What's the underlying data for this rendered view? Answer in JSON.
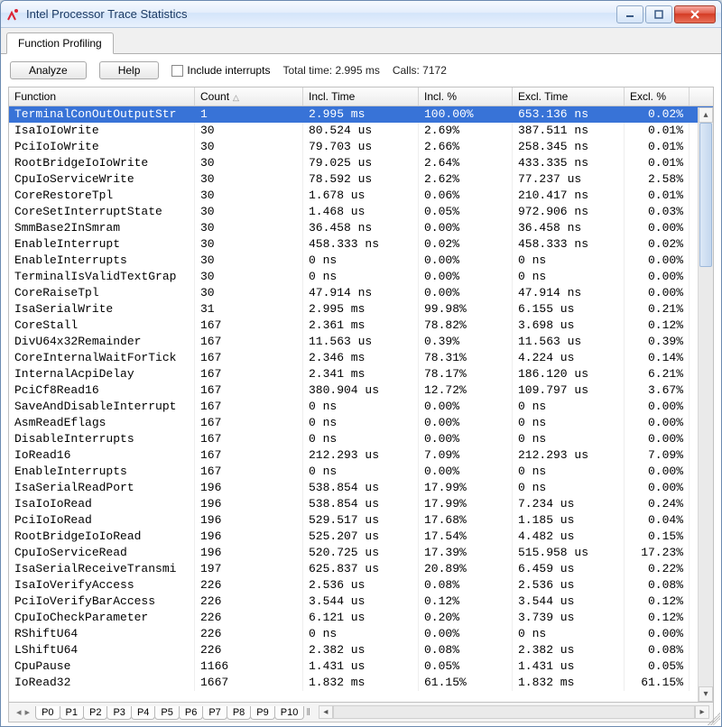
{
  "window": {
    "title": "Intel Processor Trace Statistics"
  },
  "tabs": {
    "main": "Function Profiling"
  },
  "toolbar": {
    "analyze": "Analyze",
    "help": "Help",
    "interrupts_label": "Include interrupts",
    "total_time_label": "Total time: 2.995 ms",
    "calls_label": "Calls: 7172"
  },
  "columns": [
    "Function",
    "Count",
    "Incl. Time",
    "Incl. %",
    "Excl. Time",
    "Excl. %"
  ],
  "rows": [
    {
      "fn": "TerminalConOutOutputStr",
      "count": "1",
      "it": "2.995 ms",
      "ip": "100.00%",
      "et": "653.136 ns",
      "ep": "0.02%",
      "sel": true
    },
    {
      "fn": "IsaIoIoWrite",
      "count": "30",
      "it": "80.524 us",
      "ip": "2.69%",
      "et": "387.511 ns",
      "ep": "0.01%"
    },
    {
      "fn": "PciIoIoWrite",
      "count": "30",
      "it": "79.703 us",
      "ip": "2.66%",
      "et": "258.345 ns",
      "ep": "0.01%"
    },
    {
      "fn": "RootBridgeIoIoWrite",
      "count": "30",
      "it": "79.025 us",
      "ip": "2.64%",
      "et": "433.335 ns",
      "ep": "0.01%"
    },
    {
      "fn": "CpuIoServiceWrite",
      "count": "30",
      "it": "78.592 us",
      "ip": "2.62%",
      "et": "77.237 us",
      "ep": "2.58%"
    },
    {
      "fn": "CoreRestoreTpl",
      "count": "30",
      "it": "1.678 us",
      "ip": "0.06%",
      "et": "210.417 ns",
      "ep": "0.01%"
    },
    {
      "fn": "CoreSetInterruptState",
      "count": "30",
      "it": "1.468 us",
      "ip": "0.05%",
      "et": "972.906 ns",
      "ep": "0.03%"
    },
    {
      "fn": "SmmBase2InSmram",
      "count": "30",
      "it": "36.458 ns",
      "ip": "0.00%",
      "et": "36.458 ns",
      "ep": "0.00%"
    },
    {
      "fn": "EnableInterrupt",
      "count": "30",
      "it": "458.333 ns",
      "ip": "0.02%",
      "et": "458.333 ns",
      "ep": "0.02%"
    },
    {
      "fn": "EnableInterrupts",
      "count": "30",
      "it": "0 ns",
      "ip": "0.00%",
      "et": "0 ns",
      "ep": "0.00%"
    },
    {
      "fn": "TerminalIsValidTextGrap",
      "count": "30",
      "it": "0 ns",
      "ip": "0.00%",
      "et": "0 ns",
      "ep": "0.00%"
    },
    {
      "fn": "CoreRaiseTpl",
      "count": "30",
      "it": "47.914 ns",
      "ip": "0.00%",
      "et": "47.914 ns",
      "ep": "0.00%"
    },
    {
      "fn": "IsaSerialWrite",
      "count": "31",
      "it": "2.995 ms",
      "ip": "99.98%",
      "et": "6.155 us",
      "ep": "0.21%"
    },
    {
      "fn": "CoreStall",
      "count": "167",
      "it": "2.361 ms",
      "ip": "78.82%",
      "et": "3.698 us",
      "ep": "0.12%"
    },
    {
      "fn": "DivU64x32Remainder",
      "count": "167",
      "it": "11.563 us",
      "ip": "0.39%",
      "et": "11.563 us",
      "ep": "0.39%"
    },
    {
      "fn": "CoreInternalWaitForTick",
      "count": "167",
      "it": "2.346 ms",
      "ip": "78.31%",
      "et": "4.224 us",
      "ep": "0.14%"
    },
    {
      "fn": "InternalAcpiDelay",
      "count": "167",
      "it": "2.341 ms",
      "ip": "78.17%",
      "et": "186.120 us",
      "ep": "6.21%"
    },
    {
      "fn": "PciCf8Read16",
      "count": "167",
      "it": "380.904 us",
      "ip": "12.72%",
      "et": "109.797 us",
      "ep": "3.67%"
    },
    {
      "fn": "SaveAndDisableInterrupt",
      "count": "167",
      "it": "0 ns",
      "ip": "0.00%",
      "et": "0 ns",
      "ep": "0.00%"
    },
    {
      "fn": "AsmReadEflags",
      "count": "167",
      "it": "0 ns",
      "ip": "0.00%",
      "et": "0 ns",
      "ep": "0.00%"
    },
    {
      "fn": "DisableInterrupts",
      "count": "167",
      "it": "0 ns",
      "ip": "0.00%",
      "et": "0 ns",
      "ep": "0.00%"
    },
    {
      "fn": "IoRead16",
      "count": "167",
      "it": "212.293 us",
      "ip": "7.09%",
      "et": "212.293 us",
      "ep": "7.09%"
    },
    {
      "fn": "EnableInterrupts",
      "count": "167",
      "it": "0 ns",
      "ip": "0.00%",
      "et": "0 ns",
      "ep": "0.00%"
    },
    {
      "fn": "IsaSerialReadPort",
      "count": "196",
      "it": "538.854 us",
      "ip": "17.99%",
      "et": "0 ns",
      "ep": "0.00%"
    },
    {
      "fn": "IsaIoIoRead",
      "count": "196",
      "it": "538.854 us",
      "ip": "17.99%",
      "et": "7.234 us",
      "ep": "0.24%"
    },
    {
      "fn": "PciIoIoRead",
      "count": "196",
      "it": "529.517 us",
      "ip": "17.68%",
      "et": "1.185 us",
      "ep": "0.04%"
    },
    {
      "fn": "RootBridgeIoIoRead",
      "count": "196",
      "it": "525.207 us",
      "ip": "17.54%",
      "et": "4.482 us",
      "ep": "0.15%"
    },
    {
      "fn": "CpuIoServiceRead",
      "count": "196",
      "it": "520.725 us",
      "ip": "17.39%",
      "et": "515.958 us",
      "ep": "17.23%"
    },
    {
      "fn": "IsaSerialReceiveTransmi",
      "count": "197",
      "it": "625.837 us",
      "ip": "20.89%",
      "et": "6.459 us",
      "ep": "0.22%"
    },
    {
      "fn": "IsaIoVerifyAccess",
      "count": "226",
      "it": "2.536 us",
      "ip": "0.08%",
      "et": "2.536 us",
      "ep": "0.08%"
    },
    {
      "fn": "PciIoVerifyBarAccess",
      "count": "226",
      "it": "3.544 us",
      "ip": "0.12%",
      "et": "3.544 us",
      "ep": "0.12%"
    },
    {
      "fn": "CpuIoCheckParameter",
      "count": "226",
      "it": "6.121 us",
      "ip": "0.20%",
      "et": "3.739 us",
      "ep": "0.12%"
    },
    {
      "fn": "RShiftU64",
      "count": "226",
      "it": "0 ns",
      "ip": "0.00%",
      "et": "0 ns",
      "ep": "0.00%"
    },
    {
      "fn": "LShiftU64",
      "count": "226",
      "it": "2.382 us",
      "ip": "0.08%",
      "et": "2.382 us",
      "ep": "0.08%"
    },
    {
      "fn": "CpuPause",
      "count": "1166",
      "it": "1.431 us",
      "ip": "0.05%",
      "et": "1.431 us",
      "ep": "0.05%"
    },
    {
      "fn": "IoRead32",
      "count": "1667",
      "it": "1.832 ms",
      "ip": "61.15%",
      "et": "1.832 ms",
      "ep": "61.15%"
    }
  ],
  "bottom_tabs": [
    "P0",
    "P1",
    "P2",
    "P3",
    "P4",
    "P5",
    "P6",
    "P7",
    "P8",
    "P9",
    "P10"
  ],
  "bottom_active": 0,
  "colors": {
    "selection_bg": "#3873d7",
    "selection_fg": "#ffffff"
  }
}
